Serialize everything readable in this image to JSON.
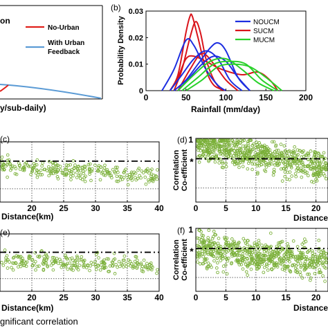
{
  "panel_a": {
    "title_fragment": "on",
    "legend": [
      {
        "label": "No-Urban",
        "color": "#e0201b"
      },
      {
        "label": "With Urban Feedback",
        "color": "#5b9bd5"
      }
    ],
    "xlabel_fragment": "y/sub-daily)"
  },
  "chart_data": [
    {
      "panel": "(b)",
      "type": "line",
      "xlabel": "Rainfall (mm/day)",
      "ylabel": "Probability Density",
      "xlim": [
        0,
        200
      ],
      "ylim": [
        0,
        0.03
      ],
      "xticks": [
        "0",
        "50",
        "100",
        "150",
        "200"
      ],
      "yticks": [
        "0",
        "0.01",
        "0.02",
        "0.03"
      ],
      "legend_position": "top-right",
      "legend": [
        {
          "label": "NOUCM",
          "color": "#1d2ee0"
        },
        {
          "label": "SUCM",
          "color": "#d9141b"
        },
        {
          "label": "MUCM",
          "color": "#29d12a"
        }
      ],
      "series": [
        {
          "name": "SUCM",
          "color": "#d9141b",
          "x": [
            30,
            40,
            50,
            55,
            58,
            65,
            75,
            85,
            100
          ],
          "y": [
            0,
            0.006,
            0.022,
            0.028,
            0.028,
            0.02,
            0.008,
            0.002,
            0
          ]
        },
        {
          "name": "SUCM",
          "color": "#d9141b",
          "x": [
            35,
            45,
            55,
            62,
            68,
            75,
            85,
            95
          ],
          "y": [
            0,
            0.008,
            0.02,
            0.026,
            0.022,
            0.012,
            0.004,
            0
          ]
        },
        {
          "name": "SUCM",
          "color": "#d9141b",
          "x": [
            30,
            40,
            50,
            60,
            75,
            95,
            120,
            140,
            155,
            165
          ],
          "y": [
            0,
            0.005,
            0.012,
            0.013,
            0.011,
            0.008,
            0.006,
            0.007,
            0.004,
            0
          ]
        },
        {
          "name": "SUCM",
          "color": "#d9141b",
          "x": [
            40,
            55,
            70,
            85,
            100,
            115
          ],
          "y": [
            0,
            0.008,
            0.014,
            0.01,
            0.004,
            0
          ]
        },
        {
          "name": "NOUCM",
          "color": "#1d2ee0",
          "x": [
            20,
            35,
            50,
            60,
            75,
            90,
            100
          ],
          "y": [
            0,
            0.008,
            0.019,
            0.017,
            0.008,
            0.002,
            0
          ]
        },
        {
          "name": "NOUCM",
          "color": "#1d2ee0",
          "x": [
            30,
            45,
            60,
            75,
            90,
            105,
            120
          ],
          "y": [
            0,
            0.006,
            0.012,
            0.015,
            0.012,
            0.004,
            0
          ]
        },
        {
          "name": "NOUCM",
          "color": "#1d2ee0",
          "x": [
            35,
            50,
            65,
            80,
            90,
            100,
            115,
            130
          ],
          "y": [
            0,
            0.004,
            0.01,
            0.016,
            0.018,
            0.015,
            0.005,
            0
          ]
        },
        {
          "name": "NOUCM",
          "color": "#1d2ee0",
          "x": [
            40,
            55,
            70,
            85,
            100,
            115,
            130
          ],
          "y": [
            0,
            0.005,
            0.01,
            0.013,
            0.011,
            0.005,
            0
          ]
        },
        {
          "name": "MUCM",
          "color": "#29d12a",
          "x": [
            40,
            60,
            80,
            100,
            120,
            140,
            160
          ],
          "y": [
            0,
            0.006,
            0.011,
            0.012,
            0.008,
            0.003,
            0
          ]
        },
        {
          "name": "MUCM",
          "color": "#29d12a",
          "x": [
            45,
            65,
            85,
            105,
            125,
            145,
            165
          ],
          "y": [
            0,
            0.005,
            0.01,
            0.011,
            0.01,
            0.004,
            0
          ]
        },
        {
          "name": "MUCM",
          "color": "#29d12a",
          "x": [
            50,
            70,
            90,
            110,
            130,
            150,
            170
          ],
          "y": [
            0,
            0.004,
            0.009,
            0.01,
            0.009,
            0.005,
            0
          ]
        }
      ]
    },
    {
      "panel": "(c)",
      "type": "scatter",
      "xlabel": "Distance(km)",
      "xlim": [
        15,
        40
      ],
      "xticks": [
        "20",
        "25",
        "30",
        "35",
        "40"
      ],
      "marker_color": "#7bb03a",
      "reference_line": 0.68,
      "n_points": 260,
      "trend": {
        "start_center": 0.6,
        "end_center": 0.42,
        "spread": 0.2
      }
    },
    {
      "panel": "(d)",
      "type": "scatter",
      "ylabel": "Correlation Co-efficient",
      "xlabel": "Distance",
      "xlim": [
        0,
        22
      ],
      "xticks": [
        "0",
        "5",
        "10",
        "15",
        "20"
      ],
      "yticks": [
        "1"
      ],
      "marker_color": "#7bb03a",
      "reference_line": 0.68,
      "marker_label": "*",
      "n_points": 700,
      "trend": {
        "start_center": 0.9,
        "end_center": 0.55,
        "spread": 0.35
      }
    },
    {
      "panel": "(e)",
      "type": "scatter",
      "xlabel": "Distance(km)",
      "xlim": [
        15,
        40
      ],
      "xticks": [
        "20",
        "25",
        "30",
        "35",
        "40"
      ],
      "marker_color": "#7bb03a",
      "reference_line": 0.68,
      "n_points": 240,
      "trend": {
        "start_center": 0.55,
        "end_center": 0.45,
        "spread": 0.22
      }
    },
    {
      "panel": "(f)",
      "type": "scatter",
      "ylabel": "Correlation Co-efficient",
      "xlabel": "Distance",
      "xlim": [
        0,
        22
      ],
      "xticks": [
        "0",
        "5",
        "10",
        "15",
        "20"
      ],
      "yticks": [
        "1"
      ],
      "marker_color": "#7bb03a",
      "reference_line": 0.68,
      "marker_label": "*",
      "n_points": 650,
      "trend": {
        "start_center": 0.7,
        "end_center": 0.45,
        "spread": 0.4
      }
    }
  ],
  "footer_text": "gnificant correlation"
}
